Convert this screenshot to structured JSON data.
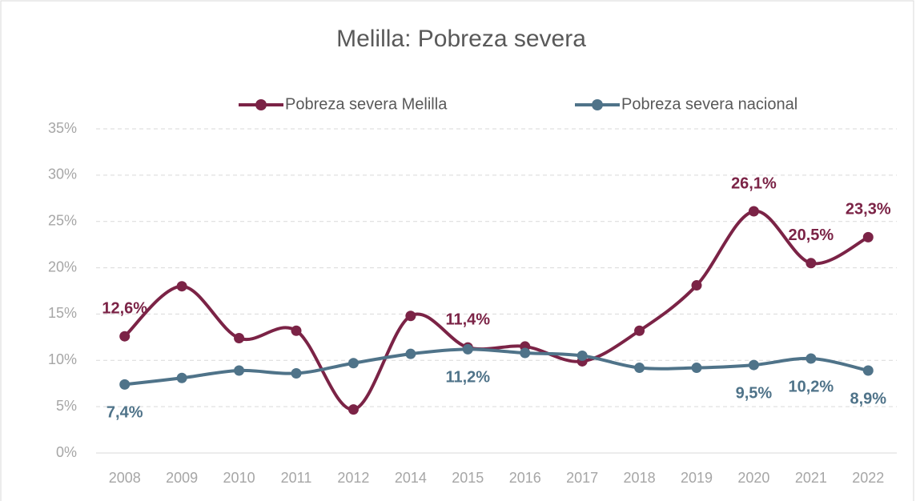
{
  "chart_data": {
    "type": "line",
    "title": "Melilla: Pobreza severa",
    "categories": [
      "2008",
      "2009",
      "2010",
      "2011",
      "2012",
      "2014",
      "2015",
      "2016",
      "2017",
      "2018",
      "2019",
      "2020",
      "2021",
      "2022"
    ],
    "series": [
      {
        "name": "Pobreza severa Melilla",
        "color": "#7b2346",
        "values": [
          12.6,
          18.0,
          12.4,
          13.2,
          4.7,
          14.8,
          11.4,
          11.5,
          9.9,
          13.2,
          18.1,
          26.1,
          20.5,
          23.3
        ],
        "value_labels": [
          "12,6%",
          null,
          null,
          null,
          null,
          null,
          "11,4%",
          null,
          null,
          null,
          null,
          "26,1%",
          "20,5%",
          "23,3%"
        ]
      },
      {
        "name": "Pobreza severa nacional",
        "color": "#4f7389",
        "values": [
          7.4,
          8.1,
          8.9,
          8.6,
          9.7,
          10.7,
          11.2,
          10.8,
          10.5,
          9.2,
          9.2,
          9.5,
          10.2,
          8.9
        ],
        "value_labels": [
          "7,4%",
          null,
          null,
          null,
          null,
          null,
          "11,2%",
          null,
          null,
          null,
          null,
          "9,5%",
          "10,2%",
          "8,9%"
        ]
      }
    ],
    "ylim": [
      0,
      35
    ],
    "yticks": [
      {
        "value": 0,
        "label": "0%"
      },
      {
        "value": 5,
        "label": "5%"
      },
      {
        "value": 10,
        "label": "10%"
      },
      {
        "value": 15,
        "label": "15%"
      },
      {
        "value": 20,
        "label": "20%"
      },
      {
        "value": 25,
        "label": "25%"
      },
      {
        "value": 30,
        "label": "30%"
      },
      {
        "value": 35,
        "label": "35%"
      }
    ],
    "grid": true,
    "legend": "top",
    "smooth": true
  }
}
